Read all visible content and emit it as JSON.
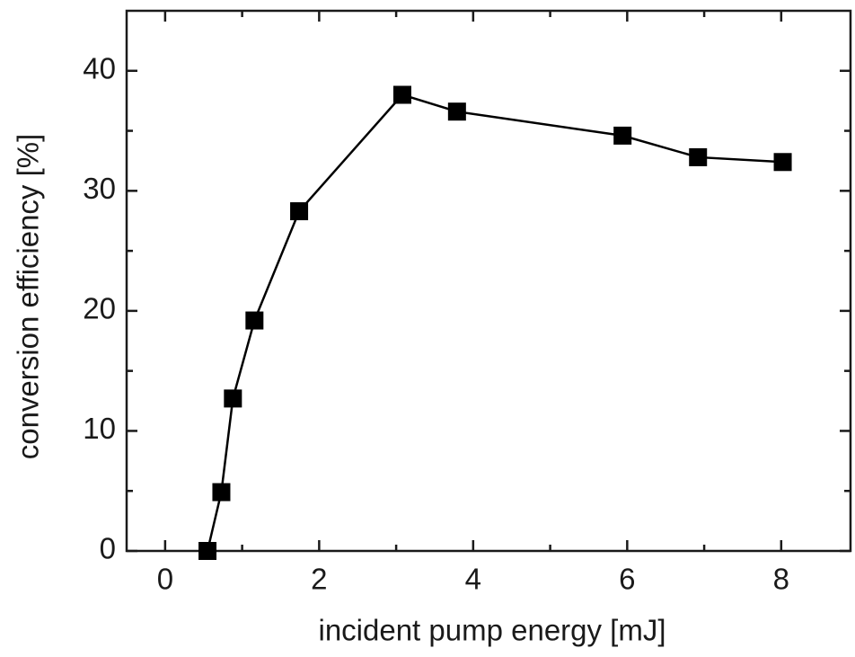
{
  "chart_data": {
    "type": "line",
    "xlabel": "incident pump energy [mJ]",
    "ylabel": "conversion efficiency [%]",
    "x": [
      0.55,
      0.73,
      0.88,
      1.16,
      1.74,
      3.08,
      3.79,
      5.94,
      6.92,
      8.02
    ],
    "series": [
      {
        "color": "#000000",
        "values": [
          0,
          4.9,
          12.7,
          19.2,
          28.3,
          38.0,
          36.6,
          34.6,
          32.8,
          32.4
        ]
      }
    ],
    "xlim": [
      -0.5,
      8.9
    ],
    "ylim": [
      0,
      45
    ],
    "xticks": [
      0,
      2,
      4,
      6,
      8
    ],
    "yticks": [
      0,
      10,
      20,
      30,
      40
    ],
    "xminorticks": [
      1,
      3,
      5,
      7
    ],
    "yminorticks": [
      5,
      15,
      25,
      35
    ],
    "marker": "square"
  }
}
